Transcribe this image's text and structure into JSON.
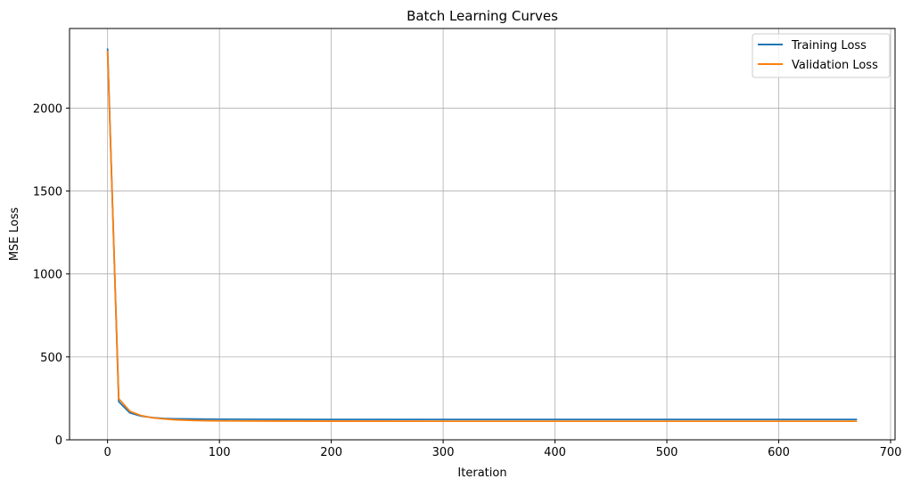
{
  "chart_data": {
    "type": "line",
    "title": "Batch Learning Curves",
    "xlabel": "Iteration",
    "ylabel": "MSE Loss",
    "xlim": [
      -34,
      704
    ],
    "ylim": [
      0,
      2480
    ],
    "xticks": [
      0,
      100,
      200,
      300,
      400,
      500,
      600,
      700
    ],
    "yticks": [
      0,
      500,
      1000,
      1500,
      2000
    ],
    "grid": true,
    "legend_position": "top-right",
    "x": [
      0,
      10,
      20,
      30,
      40,
      50,
      60,
      70,
      80,
      90,
      100,
      150,
      200,
      300,
      400,
      500,
      600,
      670
    ],
    "series": [
      {
        "name": "Training Loss",
        "color": "#1f77b4",
        "values": [
          2360,
          230,
          162,
          143,
          134,
          129,
          127,
          126,
          125,
          124.5,
          124,
          123.5,
          123,
          123,
          123,
          123,
          123,
          123
        ]
      },
      {
        "name": "Validation Loss",
        "color": "#ff7f0e",
        "values": [
          2345,
          248,
          172,
          146,
          133,
          126,
          121,
          118,
          116,
          115,
          114,
          113,
          112.5,
          112,
          112,
          112,
          112,
          112
        ]
      }
    ]
  }
}
